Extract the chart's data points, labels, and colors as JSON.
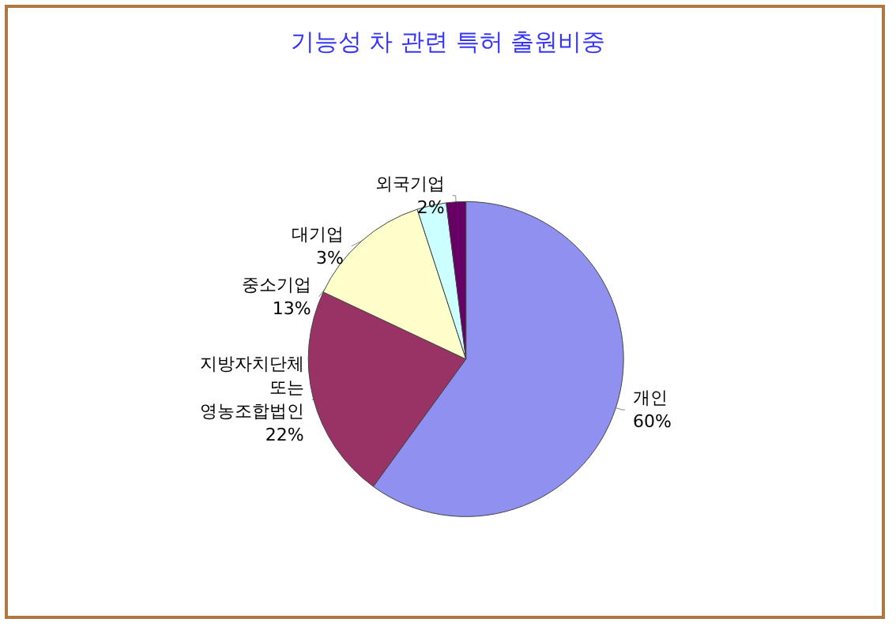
{
  "chart_data": {
    "type": "pie",
    "title": "기능성 차 관련 특허 출원비중",
    "categories": [
      "개인",
      "지방자치단체\n또는\n영농조합법인",
      "중소기업",
      "대기업",
      "외국기업"
    ],
    "values": [
      60,
      22,
      13,
      3,
      2
    ],
    "colors": [
      "#9090f0",
      "#993366",
      "#ffffcc",
      "#ccffff",
      "#660066"
    ],
    "value_labels": [
      "60%",
      "22%",
      "13%",
      "3%",
      "2%"
    ],
    "legend": false
  }
}
